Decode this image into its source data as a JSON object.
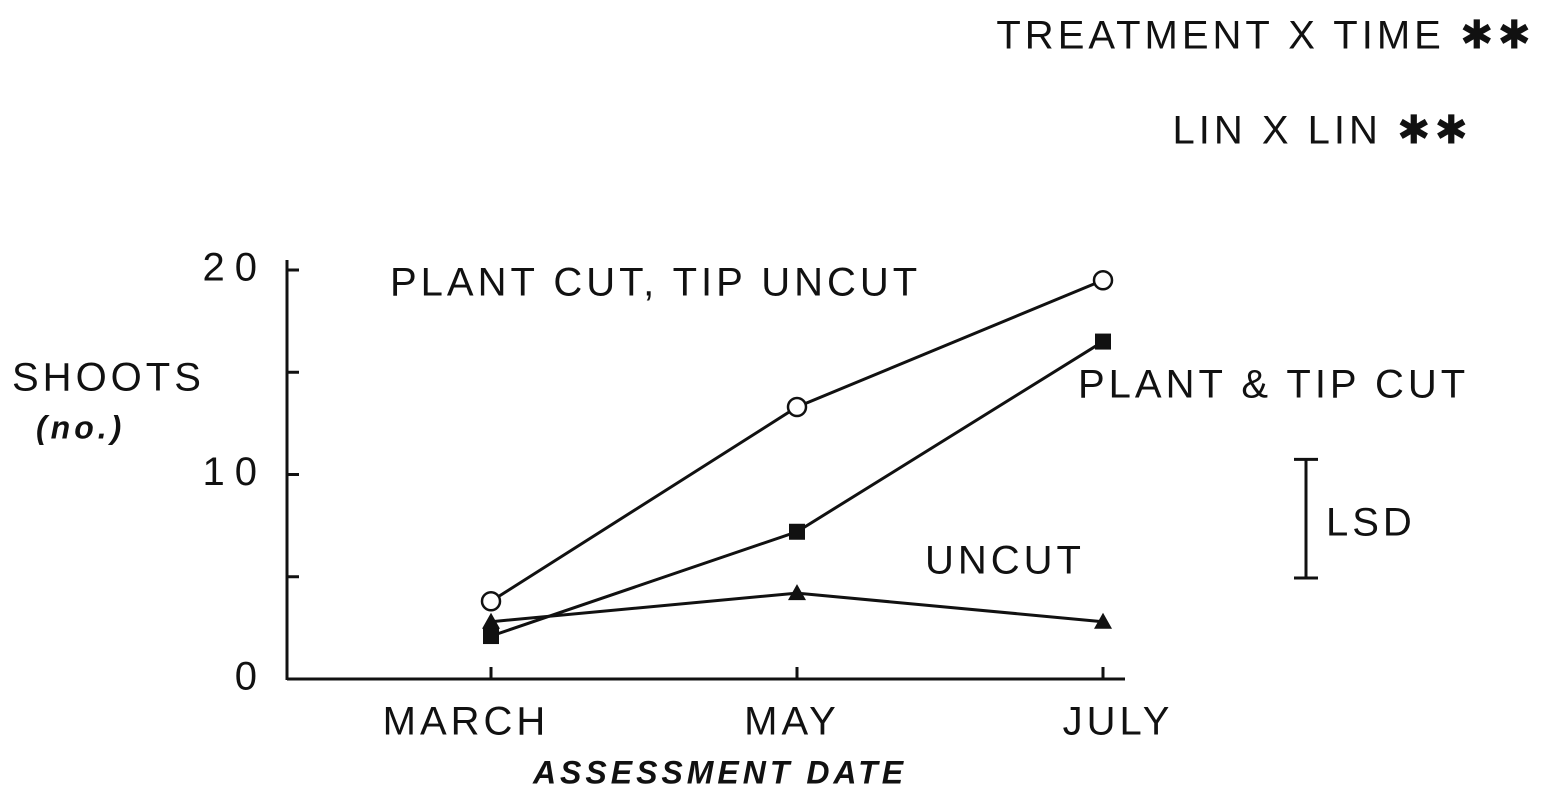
{
  "chart_data": {
    "type": "line",
    "annotations": [
      "TREATMENT X TIME ✱✱",
      "LIN X LIN ✱✱"
    ],
    "ylabel": "SHOOTS",
    "ylabel_unit": "(no.)",
    "xlabel": "ASSESSMENT DATE",
    "categories": [
      "MARCH",
      "MAY",
      "JULY"
    ],
    "series": [
      {
        "name": "PLANT CUT, TIP UNCUT",
        "color": "#111111",
        "marker": "open-circle",
        "values": [
          3.8,
          13.3,
          19.5
        ]
      },
      {
        "name": "PLANT & TIP CUT",
        "color": "#111111",
        "marker": "filled-square",
        "values": [
          2.1,
          7.2,
          16.5
        ]
      },
      {
        "name": "UNCUT",
        "color": "#111111",
        "marker": "filled-triangle",
        "values": [
          2.8,
          4.2,
          2.8
        ]
      }
    ],
    "lsd": {
      "label": "LSD",
      "value": 5.8
    },
    "ylim": [
      0,
      20
    ],
    "yticks": [
      0,
      10,
      20
    ],
    "minor_yticks": [
      5,
      15
    ],
    "grid": false
  }
}
